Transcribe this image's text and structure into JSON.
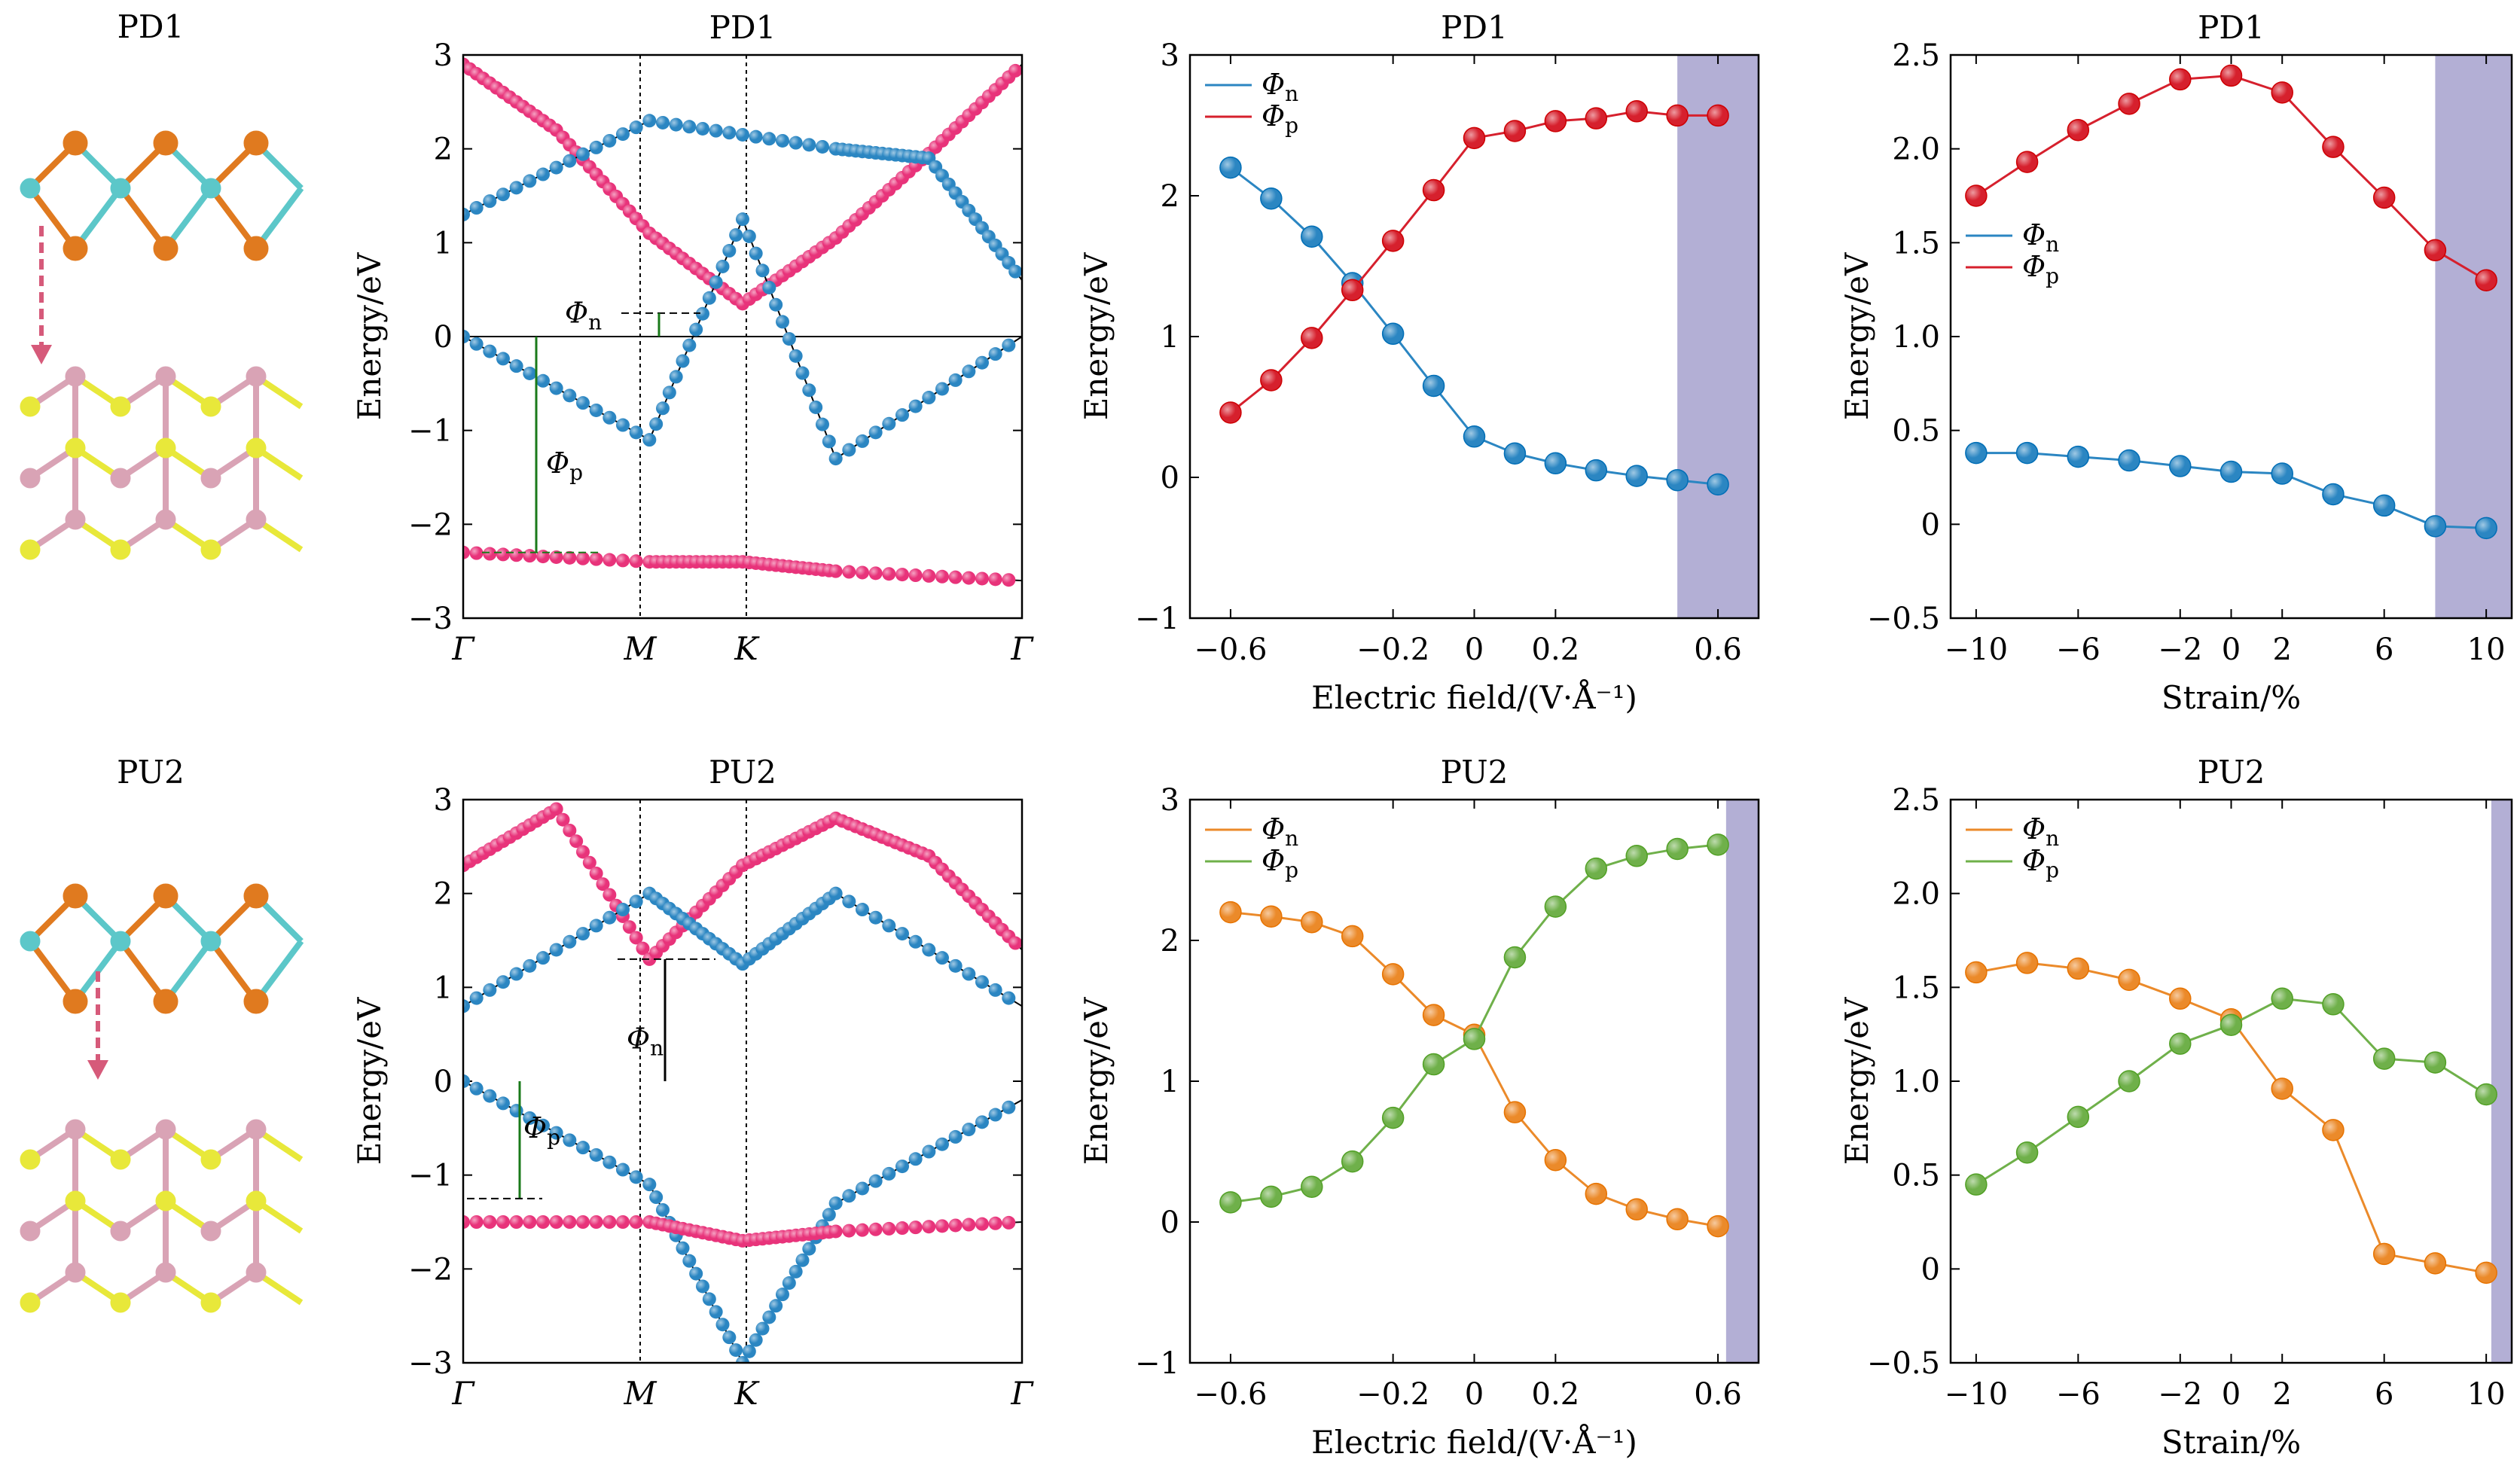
{
  "colors": {
    "blue": "#2b86c2",
    "pink": "#e8337a",
    "red": "#d6202d",
    "orange": "#eb8a2a",
    "green": "#6fb04a",
    "shade": "#b3afd5",
    "orange_atom": "#e07a1f",
    "teal_atom": "#5cc7c9",
    "yellow_atom": "#e8e83a",
    "pink_atom": "#d9a3b5",
    "arrow": "#d65a7a"
  },
  "structure_labels": [
    "PD1",
    "PU2"
  ],
  "chart_data": [
    {
      "type": "line",
      "panel": "band-PD1",
      "title": "PD1",
      "ylabel": "Energy/eV",
      "ylim": [
        -3,
        3
      ],
      "yticks": [
        "3",
        "2",
        "1",
        "0",
        "−1",
        "−2",
        "−3"
      ],
      "kpoints": [
        "Γ",
        "M",
        "K",
        "Γ"
      ],
      "annotations": [
        "Φn",
        "Φp"
      ],
      "series": [
        {
          "color": "pink",
          "x": [
            0,
            0.5,
            1,
            1.5,
            2,
            2.5,
            3
          ],
          "y": [
            2.9,
            2.2,
            1.1,
            0.35,
            1.05,
            1.95,
            2.9
          ]
        },
        {
          "color": "blue",
          "x": [
            0,
            1,
            2,
            2.5,
            3
          ],
          "y": [
            1.3,
            2.3,
            2.0,
            1.9,
            0.6
          ]
        },
        {
          "color": "blue",
          "x": [
            0,
            1,
            1.5,
            2,
            3
          ],
          "y": [
            0,
            -1.1,
            1.25,
            -1.3,
            0
          ]
        },
        {
          "color": "pink",
          "x": [
            0,
            1,
            1.5,
            2,
            3
          ],
          "y": [
            -2.3,
            -2.4,
            -2.4,
            -2.5,
            -2.6
          ]
        }
      ]
    },
    {
      "type": "scatter",
      "panel": "field-PD1",
      "title": "PD1",
      "xlabel": "Electric field/(V·Å⁻¹)",
      "ylabel": "Energy/eV",
      "xlim": [
        -0.7,
        0.7
      ],
      "ylim": [
        -1,
        3
      ],
      "xticks": [
        "−0.6",
        "−0.2",
        "0",
        "0.2",
        "0.6"
      ],
      "yticks": [
        "3",
        "2",
        "1",
        "0",
        "−1"
      ],
      "shade_from": 0.5,
      "series": [
        {
          "name": "Φn",
          "color": "blue",
          "x": [
            -0.6,
            -0.5,
            -0.4,
            -0.3,
            -0.2,
            -0.1,
            0,
            0.1,
            0.2,
            0.3,
            0.4,
            0.5,
            0.6
          ],
          "y": [
            2.2,
            1.98,
            1.71,
            1.38,
            1.02,
            0.65,
            0.29,
            0.17,
            0.1,
            0.05,
            0.01,
            -0.02,
            -0.05
          ]
        },
        {
          "name": "Φp",
          "color": "red",
          "x": [
            -0.6,
            -0.5,
            -0.4,
            -0.3,
            -0.2,
            -0.1,
            0,
            0.1,
            0.2,
            0.3,
            0.4,
            0.5,
            0.6
          ],
          "y": [
            0.46,
            0.69,
            0.99,
            1.33,
            1.68,
            2.04,
            2.41,
            2.46,
            2.53,
            2.55,
            2.6,
            2.57,
            2.57
          ]
        }
      ]
    },
    {
      "type": "scatter",
      "panel": "strain-PD1",
      "title": "PD1",
      "xlabel": "Strain/%",
      "ylabel": "Energy/eV",
      "xlim": [
        -11,
        11
      ],
      "ylim": [
        -0.5,
        2.5
      ],
      "xticks": [
        "−10",
        "−6",
        "−2",
        "0",
        "2",
        "6",
        "10"
      ],
      "yticks": [
        "2.5",
        "2.0",
        "1.5",
        "1.0",
        "0.5",
        "0",
        "−0.5"
      ],
      "shade_from": 8,
      "series": [
        {
          "name": "Φn",
          "color": "blue",
          "x": [
            -10,
            -8,
            -6,
            -4,
            -2,
            0,
            2,
            4,
            6,
            8,
            10
          ],
          "y": [
            0.38,
            0.38,
            0.36,
            0.34,
            0.31,
            0.28,
            0.27,
            0.16,
            0.1,
            -0.01,
            -0.02
          ]
        },
        {
          "name": "Φp",
          "color": "red",
          "x": [
            -10,
            -8,
            -6,
            -4,
            -2,
            0,
            2,
            4,
            6,
            8,
            10
          ],
          "y": [
            1.75,
            1.93,
            2.1,
            2.24,
            2.37,
            2.39,
            2.3,
            2.01,
            1.74,
            1.46,
            1.3
          ]
        }
      ]
    },
    {
      "type": "line",
      "panel": "band-PU2",
      "title": "PU2",
      "ylabel": "Energy/eV",
      "ylim": [
        -3,
        3
      ],
      "yticks": [
        "3",
        "2",
        "1",
        "0",
        "−1",
        "−2",
        "−3"
      ],
      "kpoints": [
        "Γ",
        "M",
        "K",
        "Γ"
      ],
      "annotations": [
        "Φn",
        "Φp"
      ],
      "series": [
        {
          "color": "pink",
          "x": [
            0,
            0.5,
            1,
            1.5,
            2,
            2.5,
            3
          ],
          "y": [
            2.3,
            2.9,
            1.3,
            2.3,
            2.8,
            2.4,
            1.4
          ]
        },
        {
          "color": "blue",
          "x": [
            0,
            1,
            1.5,
            2,
            3
          ],
          "y": [
            0.8,
            2.0,
            1.25,
            2.0,
            0.8
          ]
        },
        {
          "color": "blue",
          "x": [
            0,
            1,
            1.5,
            2,
            3
          ],
          "y": [
            0,
            -1.1,
            -3.0,
            -1.3,
            -0.2
          ]
        },
        {
          "color": "pink",
          "x": [
            0,
            1,
            1.5,
            2,
            3
          ],
          "y": [
            -1.5,
            -1.5,
            -1.7,
            -1.6,
            -1.5
          ]
        }
      ]
    },
    {
      "type": "scatter",
      "panel": "field-PU2",
      "title": "PU2",
      "xlabel": "Electric field/(V·Å⁻¹)",
      "ylabel": "Energy/eV",
      "xlim": [
        -0.7,
        0.7
      ],
      "ylim": [
        -1,
        3
      ],
      "xticks": [
        "−0.6",
        "−0.2",
        "0",
        "0.2",
        "0.6"
      ],
      "yticks": [
        "3",
        "2",
        "1",
        "0",
        "−1"
      ],
      "shade_from": 0.62,
      "series": [
        {
          "name": "Φn",
          "color": "orange",
          "x": [
            -0.6,
            -0.5,
            -0.4,
            -0.3,
            -0.2,
            -0.1,
            0,
            0.1,
            0.2,
            0.3,
            0.4,
            0.5,
            0.6
          ],
          "y": [
            2.2,
            2.17,
            2.13,
            2.03,
            1.76,
            1.47,
            1.33,
            0.78,
            0.44,
            0.2,
            0.09,
            0.02,
            -0.03
          ]
        },
        {
          "name": "Φp",
          "color": "green",
          "x": [
            -0.6,
            -0.5,
            -0.4,
            -0.3,
            -0.2,
            -0.1,
            0,
            0.1,
            0.2,
            0.3,
            0.4,
            0.5,
            0.6
          ],
          "y": [
            0.14,
            0.18,
            0.25,
            0.43,
            0.74,
            1.12,
            1.3,
            1.88,
            2.24,
            2.51,
            2.6,
            2.65,
            2.68
          ]
        }
      ]
    },
    {
      "type": "scatter",
      "panel": "strain-PU2",
      "title": "PU2",
      "xlabel": "Strain/%",
      "ylabel": "Energy/eV",
      "xlim": [
        -11,
        11
      ],
      "ylim": [
        -0.5,
        2.5
      ],
      "xticks": [
        "−10",
        "−6",
        "−2",
        "0",
        "2",
        "6",
        "10"
      ],
      "yticks": [
        "2.5",
        "2.0",
        "1.5",
        "1.0",
        "0.5",
        "0",
        "−0.5"
      ],
      "shade_from": 10.2,
      "series": [
        {
          "name": "Φn",
          "color": "orange",
          "x": [
            -10,
            -8,
            -6,
            -4,
            -2,
            0,
            2,
            4,
            6,
            8,
            10
          ],
          "y": [
            1.58,
            1.63,
            1.6,
            1.54,
            1.44,
            1.33,
            0.96,
            0.74,
            0.08,
            0.03,
            -0.02
          ]
        },
        {
          "name": "Φp",
          "color": "green",
          "x": [
            -10,
            -8,
            -6,
            -4,
            -2,
            0,
            2,
            4,
            6,
            8,
            10
          ],
          "y": [
            0.45,
            0.62,
            0.81,
            1.0,
            1.2,
            1.3,
            1.44,
            1.41,
            1.12,
            1.1,
            0.93
          ]
        }
      ]
    }
  ]
}
